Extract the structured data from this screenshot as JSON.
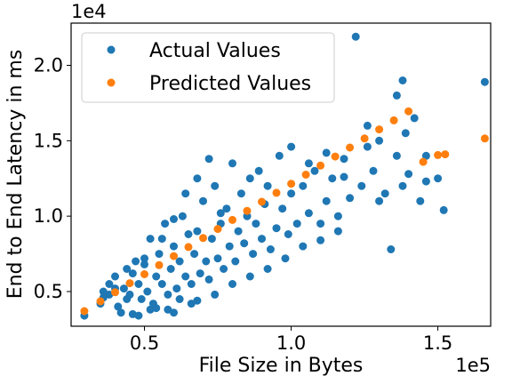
{
  "chart_data": {
    "type": "scatter",
    "xlabel": "File Size in Bytes",
    "ylabel": "End to End Latency in ms",
    "x_scale_label": "1e5",
    "y_scale_label": "1e4",
    "xlim": [
      25000,
      168000
    ],
    "ylim": [
      2700,
      22800
    ],
    "x_ticks": [
      {
        "value": 50000,
        "label": "0.5"
      },
      {
        "value": 100000,
        "label": "1.0"
      },
      {
        "value": 150000,
        "label": "1.5"
      }
    ],
    "y_ticks": [
      {
        "value": 5000,
        "label": "0.5"
      },
      {
        "value": 10000,
        "label": "1.0"
      },
      {
        "value": 15000,
        "label": "1.5"
      },
      {
        "value": 20000,
        "label": "2.0"
      }
    ],
    "legend_position": "upper-left",
    "grid": false,
    "series": [
      {
        "name": "Actual Values",
        "color": "#1f77b4",
        "points": [
          [
            29500,
            3400
          ],
          [
            35000,
            4200
          ],
          [
            36000,
            5000
          ],
          [
            38000,
            5500
          ],
          [
            40000,
            6000
          ],
          [
            41000,
            4000
          ],
          [
            42000,
            3600
          ],
          [
            43000,
            5200
          ],
          [
            44000,
            6500
          ],
          [
            45000,
            4800
          ],
          [
            46000,
            3500
          ],
          [
            47000,
            7000
          ],
          [
            48000,
            5500
          ],
          [
            49000,
            4500
          ],
          [
            50000,
            6800
          ],
          [
            51000,
            5000
          ],
          [
            52000,
            8500
          ],
          [
            53000,
            4200
          ],
          [
            54000,
            6000
          ],
          [
            55000,
            7500
          ],
          [
            56000,
            5500
          ],
          [
            57000,
            9500
          ],
          [
            58000,
            4800
          ],
          [
            59000,
            6500
          ],
          [
            60000,
            8000
          ],
          [
            61000,
            5200
          ],
          [
            62000,
            7000
          ],
          [
            63000,
            10000
          ],
          [
            64000,
            6000
          ],
          [
            65000,
            8800
          ],
          [
            66000,
            5500
          ],
          [
            67000,
            7500
          ],
          [
            68000,
            9000
          ],
          [
            69000,
            6200
          ],
          [
            70000,
            11000
          ],
          [
            71000,
            7000
          ],
          [
            72000,
            5800
          ],
          [
            73000,
            8500
          ],
          [
            74000,
            12000
          ],
          [
            75000,
            7200
          ],
          [
            76000,
            9500
          ],
          [
            77000,
            6500
          ],
          [
            78000,
            10500
          ],
          [
            79000,
            8000
          ],
          [
            80000,
            13500
          ],
          [
            81000,
            7000
          ],
          [
            82000,
            9000
          ],
          [
            83000,
            11500
          ],
          [
            84000,
            8200
          ],
          [
            85000,
            10000
          ],
          [
            86000,
            12500
          ],
          [
            87000,
            7500
          ],
          [
            88000,
            9500
          ],
          [
            89000,
            13000
          ],
          [
            90000,
            8500
          ],
          [
            91000,
            10800
          ],
          [
            92000,
            12000
          ],
          [
            93000,
            7800
          ],
          [
            95000,
            9200
          ],
          [
            97000,
            10500
          ],
          [
            99000,
            8800
          ],
          [
            100000,
            11500
          ],
          [
            102000,
            9500
          ],
          [
            104000,
            12000
          ],
          [
            106000,
            10200
          ],
          [
            108000,
            13000
          ],
          [
            110000,
            9500
          ],
          [
            112000,
            11000
          ],
          [
            114000,
            12500
          ],
          [
            116000,
            10000
          ],
          [
            118000,
            13800
          ],
          [
            120000,
            11200
          ],
          [
            122000,
            21900
          ],
          [
            124000,
            12000
          ],
          [
            126000,
            14600
          ],
          [
            128000,
            13000
          ],
          [
            130000,
            15000
          ],
          [
            132000,
            11500
          ],
          [
            134000,
            7800
          ],
          [
            136000,
            14000
          ],
          [
            138000,
            19000
          ],
          [
            140000,
            12800
          ],
          [
            142000,
            16500
          ],
          [
            144000,
            11000
          ],
          [
            146000,
            14000
          ],
          [
            150000,
            12500
          ],
          [
            152000,
            10400
          ],
          [
            166000,
            18900
          ],
          [
            138000,
            12000
          ],
          [
            130000,
            11000
          ],
          [
            126000,
            16000
          ],
          [
            136000,
            18000
          ],
          [
            146000,
            12300
          ],
          [
            139000,
            15500
          ],
          [
            58000,
            3800
          ],
          [
            62000,
            4500
          ],
          [
            66000,
            4200
          ],
          [
            52000,
            3800
          ],
          [
            48000,
            3400
          ],
          [
            44000,
            4500
          ],
          [
            38000,
            4800
          ],
          [
            40000,
            5200
          ],
          [
            36000,
            4600
          ],
          [
            60000,
            9800
          ],
          [
            64000,
            11500
          ],
          [
            68000,
            12500
          ],
          [
            72000,
            13800
          ],
          [
            76000,
            10200
          ],
          [
            56000,
            8500
          ],
          [
            50000,
            7200
          ],
          [
            46000,
            6200
          ],
          [
            54000,
            3900
          ],
          [
            60000,
            3600
          ],
          [
            68000,
            4400
          ],
          [
            74000,
            4800
          ],
          [
            80000,
            5500
          ],
          [
            86000,
            6000
          ],
          [
            92000,
            6500
          ],
          [
            98000,
            7200
          ],
          [
            104000,
            8000
          ],
          [
            110000,
            8400
          ],
          [
            116000,
            9000
          ],
          [
            96000,
            14000
          ],
          [
            100000,
            14600
          ],
          [
            106000,
            13500
          ],
          [
            112000,
            14200
          ],
          [
            118000,
            12600
          ]
        ]
      },
      {
        "name": "Predicted Values",
        "color": "#ff7f0e",
        "points": [
          [
            29500,
            3700
          ],
          [
            35000,
            4350
          ],
          [
            40000,
            4950
          ],
          [
            45000,
            5550
          ],
          [
            50000,
            6150
          ],
          [
            55000,
            6750
          ],
          [
            60000,
            7350
          ],
          [
            65000,
            7950
          ],
          [
            70000,
            8550
          ],
          [
            75000,
            9150
          ],
          [
            80000,
            9750
          ],
          [
            85000,
            10350
          ],
          [
            90000,
            10950
          ],
          [
            95000,
            11550
          ],
          [
            100000,
            12150
          ],
          [
            105000,
            12750
          ],
          [
            110000,
            13350
          ],
          [
            115000,
            13950
          ],
          [
            120000,
            14550
          ],
          [
            125000,
            15150
          ],
          [
            130000,
            15750
          ],
          [
            135000,
            16350
          ],
          [
            140000,
            16950
          ],
          [
            145000,
            13600
          ],
          [
            150000,
            14050
          ],
          [
            152500,
            14100
          ],
          [
            166000,
            15150
          ]
        ]
      }
    ]
  }
}
